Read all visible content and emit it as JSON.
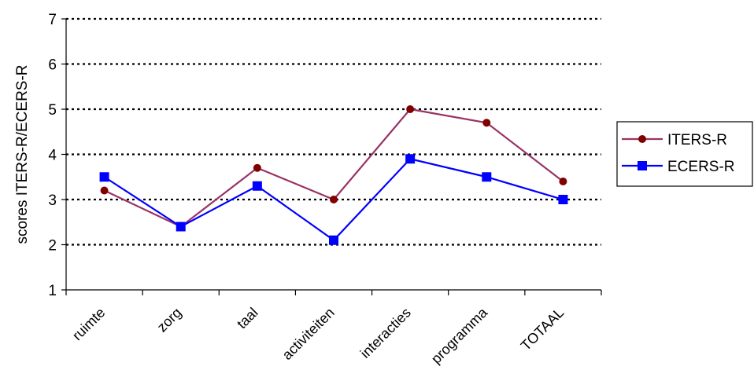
{
  "chart_data": {
    "type": "line",
    "title": "",
    "xlabel": "",
    "ylabel": "scores ITERS-R/ECERS-R",
    "ylim": [
      1,
      7
    ],
    "yticks": [
      1,
      2,
      3,
      4,
      5,
      6,
      7
    ],
    "grid": "horizontal-dotted",
    "legend": "right",
    "categories": [
      "ruimte",
      "zorg",
      "taal",
      "activiteiten",
      "interacties",
      "programma",
      "TOTAAL"
    ],
    "series": [
      {
        "name": "ITERS-R",
        "color": "#993366",
        "marker_color": "#800000",
        "marker": "circle",
        "values": [
          3.2,
          2.4,
          3.7,
          3.0,
          5.0,
          4.7,
          3.4
        ]
      },
      {
        "name": "ECERS-R",
        "color": "#0000ff",
        "marker_color": "#0000ff",
        "marker": "square",
        "values": [
          3.5,
          2.4,
          3.3,
          2.1,
          3.9,
          3.5,
          3.0
        ]
      }
    ]
  }
}
